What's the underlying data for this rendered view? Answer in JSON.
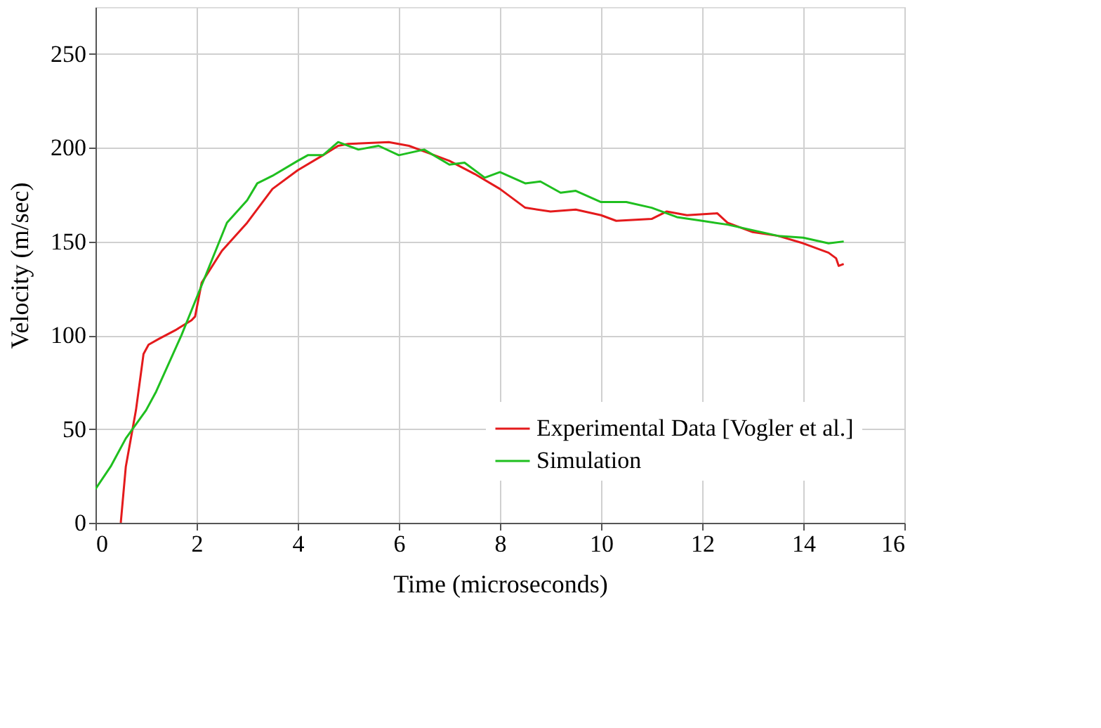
{
  "chart_data": {
    "type": "line",
    "xlabel": "Time (microseconds)",
    "ylabel": "Velocity (m/sec)",
    "xlim": [
      0,
      16
    ],
    "ylim": [
      0,
      275
    ],
    "xticks": [
      0,
      2,
      4,
      6,
      8,
      10,
      12,
      14,
      16
    ],
    "yticks": [
      0,
      50,
      100,
      150,
      200,
      250
    ],
    "grid": true,
    "legend": "bottom right",
    "line_style": "solid",
    "marker": "none",
    "series": [
      {
        "name": "Experimental Data [Vogler et al.]",
        "color": "#e41a1c",
        "x": [
          0.5,
          0.55,
          0.6,
          0.7,
          0.8,
          0.9,
          0.95,
          1.05,
          1.25,
          1.6,
          1.9,
          1.97,
          2.1,
          2.5,
          3.0,
          3.5,
          4.0,
          4.5,
          4.8,
          5.0,
          5.8,
          6.2,
          6.6,
          7.0,
          7.5,
          8.0,
          8.5,
          9.0,
          9.5,
          10.0,
          10.3,
          11.0,
          11.3,
          11.7,
          12.3,
          12.5,
          13.0,
          13.5,
          14.0,
          14.5,
          14.65,
          14.7,
          14.8
        ],
        "values": [
          0,
          15,
          30,
          45,
          60,
          80,
          90,
          95,
          98,
          103,
          108,
          110,
          128,
          145,
          160,
          178,
          188,
          196,
          201,
          202,
          203,
          201,
          197,
          193,
          186,
          178,
          168,
          166,
          167,
          164,
          161,
          162,
          166,
          164,
          165,
          160,
          155,
          153,
          149,
          144,
          141,
          137,
          138
        ]
      },
      {
        "name": "Simulation",
        "color": "#1fbf1f",
        "x": [
          0,
          0.3,
          0.6,
          1.0,
          1.2,
          1.7,
          2.0,
          2.6,
          3.0,
          3.2,
          3.5,
          4.0,
          4.2,
          4.5,
          4.8,
          5.2,
          5.6,
          6.0,
          6.5,
          7.0,
          7.3,
          7.7,
          8.0,
          8.5,
          8.8,
          9.2,
          9.5,
          10.0,
          10.5,
          11.0,
          11.5,
          12.0,
          12.5,
          13.0,
          13.5,
          14.0,
          14.5,
          14.8
        ],
        "values": [
          18,
          30,
          45,
          60,
          70,
          100,
          120,
          160,
          172,
          181,
          185,
          193,
          196,
          196,
          203,
          199,
          201,
          196,
          199,
          191,
          192,
          184,
          187,
          181,
          182,
          176,
          177,
          171,
          171,
          168,
          163,
          161,
          159,
          156,
          153,
          152,
          149,
          150
        ]
      }
    ]
  }
}
